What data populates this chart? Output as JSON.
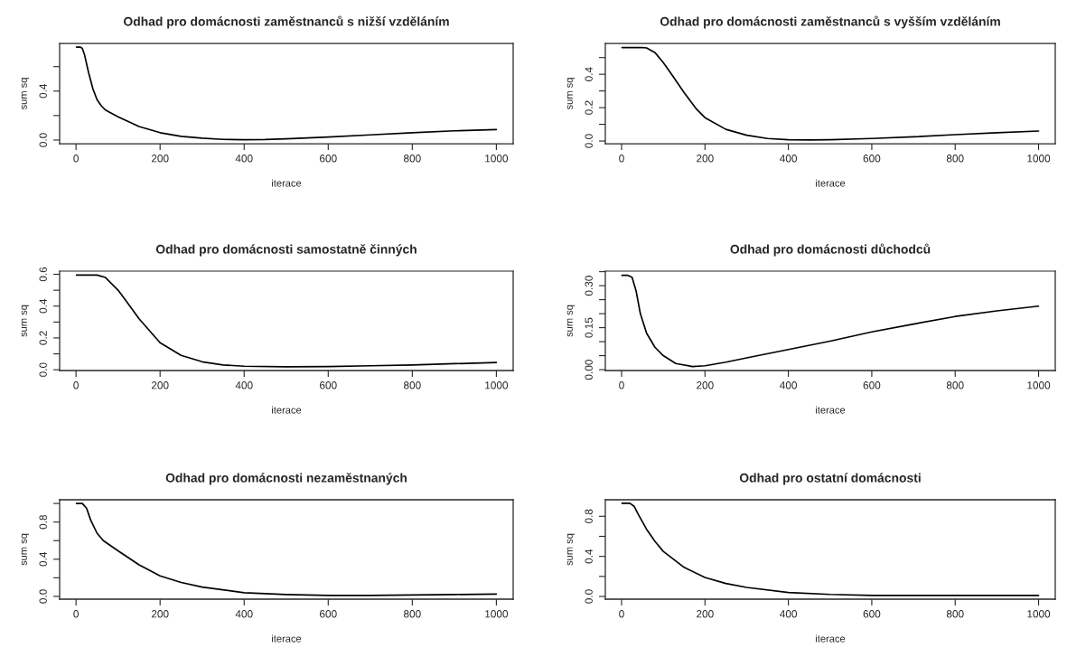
{
  "chart_data": [
    {
      "type": "line",
      "title": "Odhad pro domácnosti zaměstnanců s nižší vzděláním",
      "xlabel": "iterace",
      "ylabel": "sum sq",
      "xlim": [
        -39,
        1040
      ],
      "ylim": [
        -0.03,
        0.79
      ],
      "xticks": [
        0,
        200,
        400,
        600,
        800,
        1000
      ],
      "yticks": [
        {
          "value": 0.0,
          "label": "0.0"
        },
        {
          "value": 0.2,
          "label": null
        },
        {
          "value": 0.4,
          "label": "0.4"
        },
        {
          "value": 0.6,
          "label": null
        }
      ],
      "grid": false,
      "marker": "none",
      "line_style": "solid",
      "series": [
        {
          "color": "#000000",
          "x": [
            1,
            10,
            15,
            20,
            30,
            40,
            50,
            60,
            70,
            100,
            150,
            200,
            250,
            300,
            350,
            400,
            450,
            500,
            600,
            700,
            800,
            900,
            1000
          ],
          "values": [
            0.76,
            0.76,
            0.75,
            0.7,
            0.55,
            0.42,
            0.33,
            0.28,
            0.245,
            0.19,
            0.11,
            0.06,
            0.03,
            0.015,
            0.005,
            0.002,
            0.004,
            0.01,
            0.025,
            0.042,
            0.06,
            0.075,
            0.085
          ]
        }
      ]
    },
    {
      "type": "line",
      "title": "Odhad pro domácnosti zaměstnanců s vyšším vzděláním",
      "xlabel": "iterace",
      "ylabel": "sum sq",
      "xlim": [
        -39,
        1040
      ],
      "ylim": [
        -0.016,
        0.585
      ],
      "xticks": [
        0,
        200,
        400,
        600,
        800,
        1000
      ],
      "yticks": [
        {
          "value": 0.0,
          "label": "0.0"
        },
        {
          "value": 0.1,
          "label": null
        },
        {
          "value": 0.2,
          "label": "0.2"
        },
        {
          "value": 0.3,
          "label": null
        },
        {
          "value": 0.4,
          "label": "0.4"
        },
        {
          "value": 0.5,
          "label": null
        }
      ],
      "grid": false,
      "marker": "none",
      "line_style": "solid",
      "series": [
        {
          "color": "#000000",
          "x": [
            1,
            50,
            60,
            80,
            100,
            120,
            150,
            180,
            200,
            250,
            300,
            350,
            400,
            450,
            500,
            600,
            700,
            800,
            900,
            1000
          ],
          "values": [
            0.56,
            0.56,
            0.558,
            0.53,
            0.47,
            0.4,
            0.29,
            0.19,
            0.14,
            0.07,
            0.035,
            0.015,
            0.008,
            0.006,
            0.008,
            0.015,
            0.025,
            0.038,
            0.05,
            0.06
          ]
        }
      ]
    },
    {
      "type": "line",
      "title": "Odhad pro domácnosti samostatně činných",
      "xlabel": "iterace",
      "ylabel": "sum sq",
      "xlim": [
        -39,
        1040
      ],
      "ylim": [
        -0.005,
        0.62
      ],
      "xticks": [
        0,
        200,
        400,
        600,
        800,
        1000
      ],
      "yticks": [
        {
          "value": 0.0,
          "label": "0.0"
        },
        {
          "value": 0.1,
          "label": null
        },
        {
          "value": 0.2,
          "label": "0.2"
        },
        {
          "value": 0.3,
          "label": null
        },
        {
          "value": 0.4,
          "label": "0.4"
        },
        {
          "value": 0.5,
          "label": null
        },
        {
          "value": 0.6,
          "label": "0.6"
        }
      ],
      "grid": false,
      "marker": "none",
      "line_style": "solid",
      "series": [
        {
          "color": "#000000",
          "x": [
            1,
            50,
            70,
            100,
            120,
            150,
            200,
            250,
            300,
            350,
            400,
            500,
            600,
            700,
            800,
            900,
            1000
          ],
          "values": [
            0.595,
            0.595,
            0.58,
            0.5,
            0.43,
            0.32,
            0.17,
            0.09,
            0.05,
            0.03,
            0.022,
            0.018,
            0.02,
            0.025,
            0.03,
            0.038,
            0.045
          ]
        }
      ]
    },
    {
      "type": "line",
      "title": "Odhad pro domácnosti důchodců",
      "xlabel": "iterace",
      "ylabel": "sum sq",
      "xlim": [
        -39,
        1040
      ],
      "ylim": [
        -0.003,
        0.352
      ],
      "xticks": [
        0,
        200,
        400,
        600,
        800,
        1000
      ],
      "yticks": [
        {
          "value": 0.0,
          "label": "0.00"
        },
        {
          "value": 0.05,
          "label": null
        },
        {
          "value": 0.1,
          "label": null
        },
        {
          "value": 0.15,
          "label": "0.15"
        },
        {
          "value": 0.2,
          "label": null
        },
        {
          "value": 0.25,
          "label": null
        },
        {
          "value": 0.3,
          "label": "0.30"
        },
        {
          "value": 0.35,
          "label": null
        }
      ],
      "grid": false,
      "marker": "none",
      "line_style": "solid",
      "series": [
        {
          "color": "#000000",
          "x": [
            1,
            15,
            25,
            35,
            45,
            60,
            80,
            100,
            130,
            170,
            200,
            250,
            300,
            400,
            500,
            600,
            700,
            800,
            900,
            1000
          ],
          "values": [
            0.337,
            0.337,
            0.33,
            0.28,
            0.2,
            0.13,
            0.08,
            0.05,
            0.022,
            0.011,
            0.014,
            0.027,
            0.042,
            0.072,
            0.102,
            0.135,
            0.163,
            0.19,
            0.21,
            0.227
          ]
        }
      ]
    },
    {
      "type": "line",
      "title": "Odhad pro domácnosti nezaměstnaných",
      "xlabel": "iterace",
      "ylabel": "sum sq",
      "xlim": [
        -39,
        1040
      ],
      "ylim": [
        -0.03,
        1.04
      ],
      "xticks": [
        0,
        200,
        400,
        600,
        800,
        1000
      ],
      "yticks": [
        {
          "value": 0.0,
          "label": "0.0"
        },
        {
          "value": 0.2,
          "label": null
        },
        {
          "value": 0.4,
          "label": "0.4"
        },
        {
          "value": 0.6,
          "label": null
        },
        {
          "value": 0.8,
          "label": "0.8"
        },
        {
          "value": 1.0,
          "label": null
        }
      ],
      "grid": false,
      "marker": "none",
      "line_style": "solid",
      "series": [
        {
          "color": "#000000",
          "x": [
            1,
            15,
            25,
            35,
            50,
            65,
            100,
            150,
            200,
            250,
            300,
            400,
            500,
            600,
            700,
            800,
            900,
            1000
          ],
          "values": [
            1.0,
            1.0,
            0.95,
            0.82,
            0.68,
            0.6,
            0.49,
            0.34,
            0.22,
            0.15,
            0.1,
            0.04,
            0.02,
            0.01,
            0.01,
            0.015,
            0.02,
            0.025
          ]
        }
      ]
    },
    {
      "type": "line",
      "title": "Odhad pro ostatní domácnosti",
      "xlabel": "iterace",
      "ylabel": "sum sq",
      "xlim": [
        -39,
        1040
      ],
      "ylim": [
        -0.027,
        0.965
      ],
      "xticks": [
        0,
        200,
        400,
        600,
        800,
        1000
      ],
      "yticks": [
        {
          "value": 0.0,
          "label": "0.0"
        },
        {
          "value": 0.2,
          "label": null
        },
        {
          "value": 0.4,
          "label": "0.4"
        },
        {
          "value": 0.6,
          "label": null
        },
        {
          "value": 0.8,
          "label": "0.8"
        }
      ],
      "grid": false,
      "marker": "none",
      "line_style": "solid",
      "series": [
        {
          "color": "#000000",
          "x": [
            1,
            20,
            30,
            40,
            60,
            80,
            100,
            150,
            200,
            250,
            300,
            400,
            500,
            600,
            700,
            800,
            900,
            1000
          ],
          "values": [
            0.93,
            0.93,
            0.9,
            0.82,
            0.67,
            0.55,
            0.45,
            0.29,
            0.19,
            0.13,
            0.09,
            0.04,
            0.02,
            0.01,
            0.01,
            0.01,
            0.01,
            0.01
          ]
        }
      ]
    }
  ]
}
